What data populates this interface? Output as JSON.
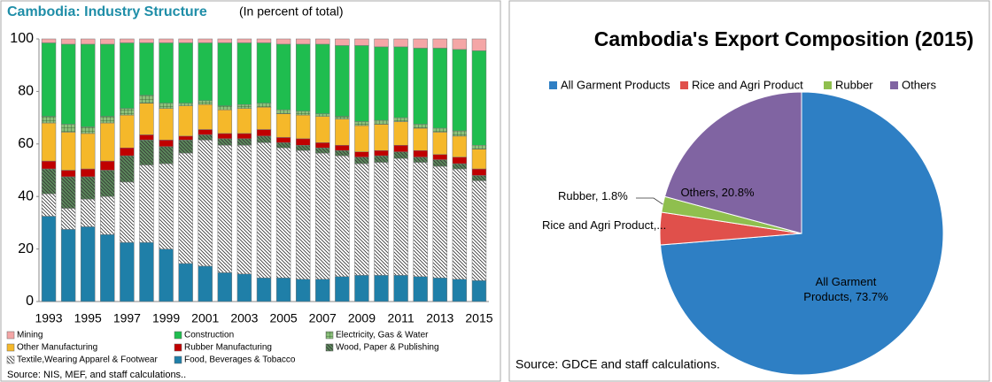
{
  "chart_data": [
    {
      "type": "bar",
      "stacked": true,
      "title": "Cambodia: Industry Structure",
      "subtitle": "(In percent of total)",
      "source": "Source: NIS, MEF, and staff calculations..",
      "categories": [
        "1993",
        null,
        "1995",
        null,
        "1997",
        null,
        "1999",
        null,
        "2001",
        null,
        "2003",
        null,
        "2005",
        null,
        "2007",
        null,
        "2009",
        null,
        "2011",
        null,
        "2013",
        null,
        "2015"
      ],
      "ylim": [
        0,
        100
      ],
      "yticks": [
        0,
        20,
        40,
        60,
        80,
        100
      ],
      "series": [
        {
          "name": "Food, Beverages & Tobacco",
          "color": "#1f7fa8",
          "values": [
            32.5,
            27.5,
            28.5,
            25.5,
            22.5,
            22.5,
            20,
            14.5,
            13.5,
            11,
            10.5,
            9,
            9,
            8.5,
            8.5,
            9.5,
            10,
            10,
            10,
            9.5,
            9,
            8.5,
            8
          ]
        },
        {
          "name": "Textile,Wearing Apparel & Footwear",
          "color": "#ffffff",
          "values": [
            8.5,
            8,
            10.5,
            14.5,
            23,
            29.5,
            32.5,
            42,
            48,
            48.5,
            49,
            51.5,
            49.5,
            49,
            48,
            46,
            42.5,
            43,
            44.5,
            43.5,
            42.5,
            42,
            38
          ]
        },
        {
          "name": "Wood, Paper & Publishing",
          "color": "#5c8a5c",
          "values": [
            9.5,
            12,
            8.5,
            10,
            10,
            9.5,
            6.5,
            5,
            2,
            2.5,
            2.5,
            2.5,
            2,
            2,
            2,
            2,
            2.5,
            2.5,
            2.5,
            2,
            2.5,
            2,
            2
          ]
        },
        {
          "name": "Rubber Manufacturing",
          "color": "#c00000",
          "values": [
            3,
            2.5,
            3,
            3.5,
            3,
            2,
            2.5,
            1.5,
            2,
            2,
            2,
            2.5,
            2,
            2.5,
            2,
            2,
            2,
            2,
            2.5,
            2.5,
            2,
            2.5,
            2.5
          ]
        },
        {
          "name": "Other Manufacturing",
          "color": "#f5b82a",
          "values": [
            14.5,
            14.5,
            13.5,
            14.5,
            12.5,
            12,
            12,
            11.5,
            9.5,
            9,
            9.5,
            8.5,
            9,
            9,
            10,
            10,
            10,
            10,
            9,
            8.5,
            8.5,
            8,
            7.5
          ]
        },
        {
          "name": "Electricity, Gas & Water",
          "color": "#8cc07a",
          "values": [
            2.5,
            3,
            2.5,
            2.5,
            2.5,
            3,
            2,
            1,
            1.5,
            1.5,
            1.5,
            1.5,
            1.5,
            1.5,
            1,
            1,
            1.5,
            1.5,
            1.5,
            1.5,
            1.5,
            2,
            1.5
          ]
        },
        {
          "name": "Construction",
          "color": "#1fbd4f",
          "values": [
            28,
            30.5,
            31.5,
            27.5,
            25,
            20,
            23,
            23,
            22,
            24,
            23.5,
            23,
            25,
            25.5,
            26.5,
            27,
            29,
            28,
            27,
            29,
            30.5,
            31,
            36
          ]
        },
        {
          "name": "Mining",
          "color": "#f4a6a6",
          "values": [
            1.5,
            2,
            2,
            2,
            1.5,
            1.5,
            1.5,
            1.5,
            1.5,
            1.5,
            1.5,
            1.5,
            2,
            2,
            2,
            2.5,
            2.5,
            3,
            3,
            3.5,
            3.5,
            4,
            4.5
          ]
        }
      ]
    },
    {
      "type": "pie",
      "title": "Cambodia's Export Composition (2015)",
      "source": "Source: GDCE and staff calculations.",
      "legend": "top",
      "categories": [
        "All Garment Products",
        "Rice and Agri Product",
        "Rubber",
        "Others"
      ],
      "values": [
        73.7,
        3.7,
        1.8,
        20.8
      ],
      "value_labels": [
        "All Garment Products, 73.7%",
        "Rice and Agri Product,...",
        "Rubber, 1.8%",
        "Others, 20.8%"
      ],
      "colors": [
        "#2e7fc4",
        "#e0504b",
        "#8fbf4e",
        "#8064a2"
      ]
    }
  ]
}
